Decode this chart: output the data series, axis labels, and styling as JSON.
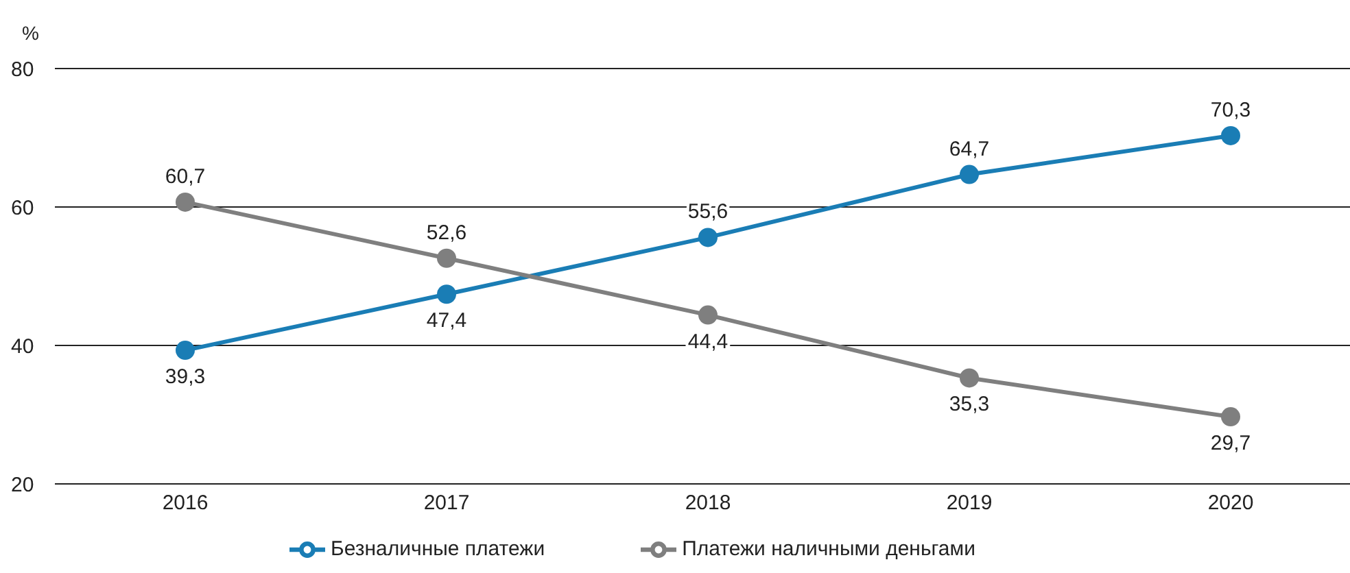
{
  "chart_data": {
    "type": "line",
    "ylabel": "%",
    "categories": [
      "2016",
      "2017",
      "2018",
      "2019",
      "2020"
    ],
    "series": [
      {
        "name": "Безналичные платежи",
        "color": "#1a7db5",
        "values": [
          39.3,
          47.4,
          55.6,
          64.7,
          70.3
        ],
        "value_labels": [
          "39,3",
          "47,4",
          "55,6",
          "64,7",
          "70,3"
        ]
      },
      {
        "name": "Платежи наличными деньгами",
        "color": "#7f7f7f",
        "values": [
          60.7,
          52.6,
          44.4,
          35.3,
          29.7
        ],
        "value_labels": [
          "60,7",
          "52,6",
          "44,4",
          "35,3",
          "29,7"
        ]
      }
    ],
    "ylim": [
      20,
      80
    ],
    "yticks": [
      20,
      40,
      60,
      80
    ],
    "grid": "y",
    "legend": "bottom",
    "marker": "circle",
    "line_style": "solid"
  }
}
